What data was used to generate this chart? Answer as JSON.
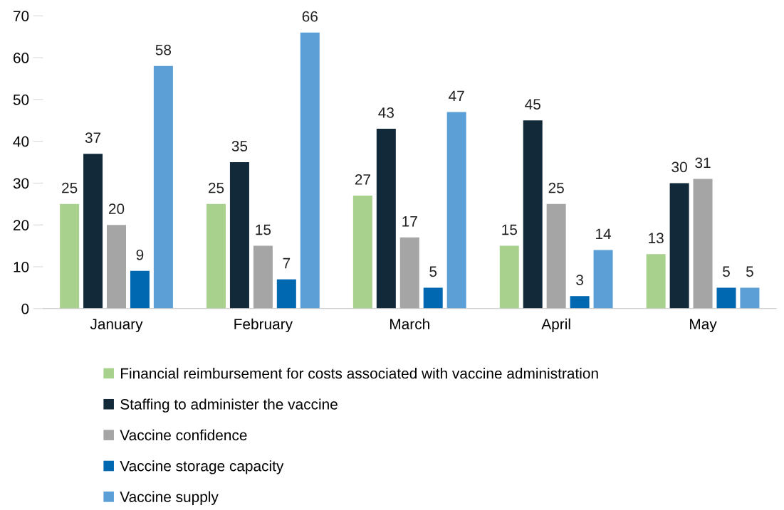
{
  "chart_data": {
    "type": "bar",
    "categories": [
      "January",
      "February",
      "March",
      "April",
      "May"
    ],
    "series": [
      {
        "name": "Financial reimbursement for costs associated with vaccine administration",
        "color": "#a9d18e",
        "values": [
          25,
          25,
          27,
          15,
          13
        ]
      },
      {
        "name": "Staffing to administer the vaccine",
        "color": "#12293a",
        "values": [
          37,
          35,
          43,
          45,
          30
        ]
      },
      {
        "name": "Vaccine confidence",
        "color": "#a5a5a5",
        "values": [
          20,
          15,
          17,
          25,
          31
        ]
      },
      {
        "name": "Vaccine storage capacity",
        "color": "#0067b1",
        "values": [
          9,
          7,
          5,
          3,
          5
        ]
      },
      {
        "name": "Vaccine supply",
        "color": "#5b9fd6",
        "values": [
          58,
          66,
          47,
          14,
          5
        ]
      }
    ],
    "ylim": [
      0,
      70
    ],
    "yticks": [
      0,
      10,
      20,
      30,
      40,
      50,
      60,
      70
    ],
    "grid": false,
    "legend": "bottom",
    "data_labels": true
  }
}
